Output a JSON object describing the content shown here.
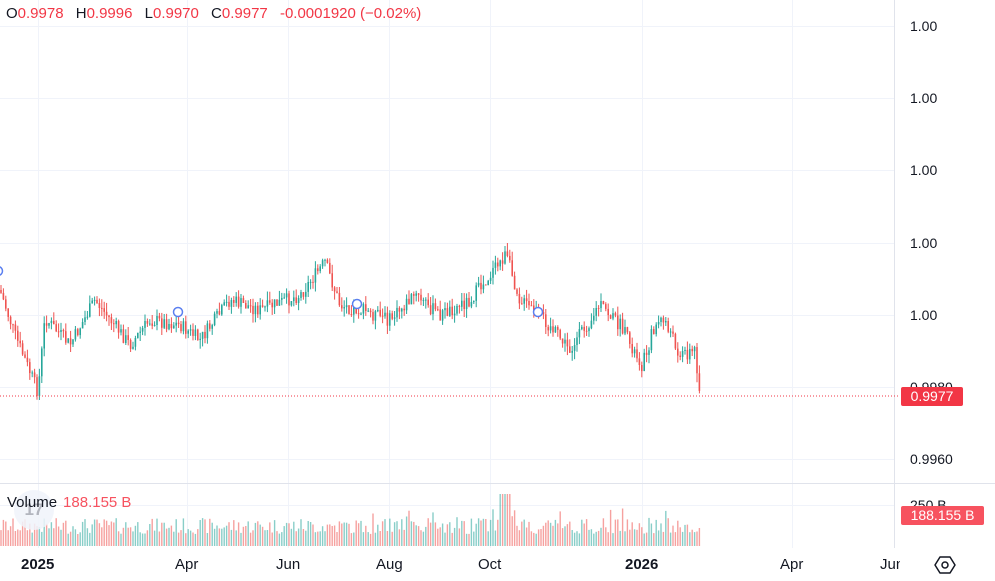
{
  "legend": {
    "o_label": "O",
    "o_value": "0.9978",
    "h_label": "H",
    "h_value": "0.9996",
    "l_label": "L",
    "l_value": "0.9970",
    "c_label": "C",
    "c_value": "0.9977",
    "change": "-0.0001920 (−0.02%)"
  },
  "price_axis": {
    "ticks": [
      "1.00",
      "1.00",
      "1.00",
      "1.00",
      "1.00",
      "0.9960"
    ],
    "partial_tick": "0.9980",
    "last_price": "0.9977"
  },
  "volume": {
    "label": "Volume",
    "value": "188.155 B",
    "axis_tick": "250 B",
    "last_value": "188.155 B"
  },
  "time_axis": {
    "labels": [
      "2025",
      "Apr",
      "Jun",
      "Aug",
      "Oct",
      "2026",
      "Apr",
      "Jun"
    ]
  },
  "logo_text": "17",
  "icons": {
    "settings": "settings-icon"
  },
  "colors": {
    "up": "#26a69a",
    "down": "#ef5350",
    "last_price": "#f23645",
    "dividend_marker": "#5b7ff0"
  }
}
